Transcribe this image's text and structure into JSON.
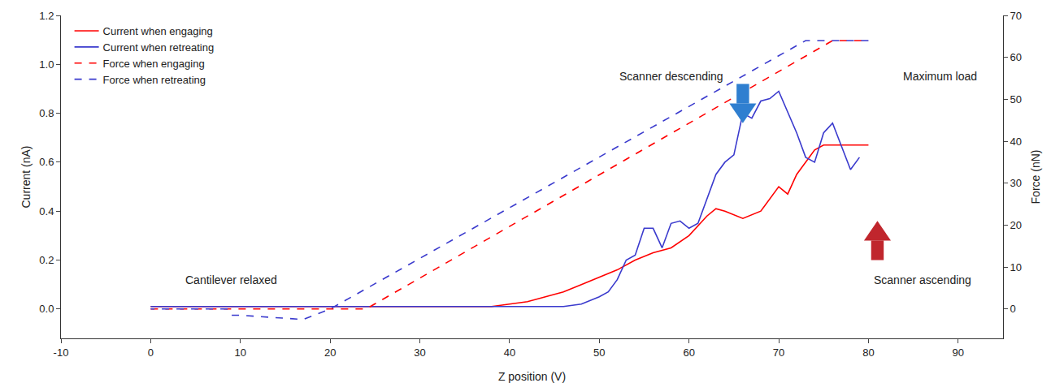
{
  "chart_data": {
    "type": "line",
    "x_label": "Z position (V)",
    "y_label": "Current (nA)",
    "y2_label": "Force (nN)",
    "xlim": [
      -10,
      95
    ],
    "xticks": [
      -10,
      0,
      10,
      20,
      30,
      40,
      50,
      60,
      70,
      80,
      90
    ],
    "ylim": [
      -0.12,
      1.2
    ],
    "yticks": [
      {
        "value": 0,
        "label": "0.0"
      },
      {
        "value": 0.2,
        "label": "0.2"
      },
      {
        "value": 0.4,
        "label": "0.4"
      },
      {
        "value": 0.6,
        "label": "0.6"
      },
      {
        "value": 0.8,
        "label": "0.8"
      },
      {
        "value": 1,
        "label": "1.0"
      },
      {
        "value": 1.2,
        "label": "1.2"
      }
    ],
    "y2lim": [
      -7,
      70
    ],
    "y2ticks": [
      0,
      10,
      20,
      30,
      40,
      50,
      60,
      70
    ],
    "legend": "top-left",
    "grid": false,
    "annotations": [
      "Cantilever relaxed",
      "Scanner descending",
      "Maximum load",
      "Scanner ascending"
    ],
    "series": [
      {
        "name": "Current when engaging",
        "color": "#ff0000",
        "line_style": "solid",
        "x": [
          0,
          10,
          20,
          30,
          38,
          40,
          42,
          44,
          46,
          48,
          50,
          52,
          54,
          56,
          58,
          60,
          62,
          63,
          64,
          66,
          68,
          70,
          71,
          72,
          74,
          75,
          76,
          80
        ],
        "values": [
          0.01,
          0.01,
          0.01,
          0.01,
          0.01,
          0.02,
          0.03,
          0.05,
          0.07,
          0.1,
          0.13,
          0.16,
          0.2,
          0.23,
          0.25,
          0.3,
          0.38,
          0.41,
          0.4,
          0.37,
          0.4,
          0.5,
          0.47,
          0.55,
          0.65,
          0.67,
          0.67,
          0.67
        ]
      },
      {
        "name": "Current when retreating",
        "color": "#3a3acd",
        "line_style": "solid",
        "x": [
          79,
          78,
          76,
          75,
          74,
          73,
          72,
          70,
          69,
          68,
          67,
          66,
          65,
          64,
          63,
          62,
          61,
          60,
          59,
          58,
          57,
          56,
          55,
          54,
          53,
          52,
          51,
          50,
          48,
          46,
          40,
          30,
          20,
          10,
          0
        ],
        "values": [
          0.62,
          0.57,
          0.76,
          0.72,
          0.6,
          0.62,
          0.72,
          0.89,
          0.86,
          0.85,
          0.78,
          0.8,
          0.63,
          0.6,
          0.55,
          0.45,
          0.35,
          0.33,
          0.36,
          0.35,
          0.25,
          0.33,
          0.33,
          0.22,
          0.2,
          0.12,
          0.07,
          0.05,
          0.02,
          0.01,
          0.01,
          0.01,
          0.01,
          0.01,
          0.01
        ]
      },
      {
        "name": "Force when engaging",
        "color": "#ff0000",
        "line_style": "dashed",
        "axis": "y2",
        "x": [
          0,
          24,
          76,
          80
        ],
        "values": [
          0,
          0,
          64,
          64
        ]
      },
      {
        "name": "Force when retreating",
        "color": "#3a3acd",
        "line_style": "dashed",
        "axis": "y2",
        "x": [
          80,
          73,
          20,
          17,
          10,
          9,
          8.5,
          0
        ],
        "values": [
          64,
          64,
          0,
          -2.5,
          -1.5,
          -1.5,
          0,
          0
        ]
      }
    ]
  }
}
